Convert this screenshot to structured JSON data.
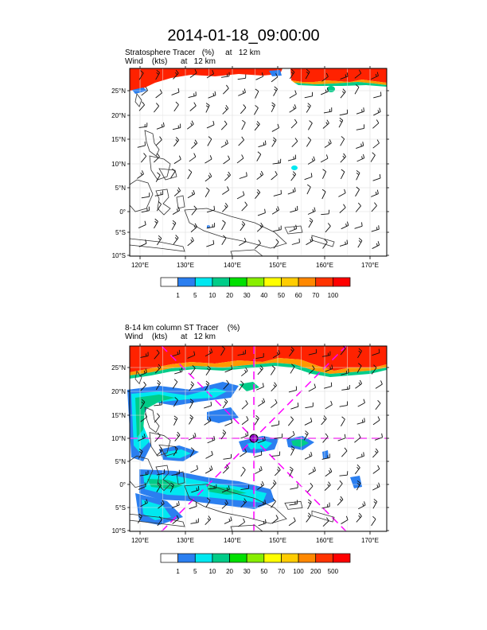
{
  "title": "2014-01-18_09:00:00",
  "panel1": {
    "line1": "Stratosphere Tracer   (%)     at   12 km",
    "line2": "Wind    (kts)      at   12 km",
    "colorbar": {
      "labels": [
        "1",
        "5",
        "10",
        "20",
        "30",
        "40",
        "50",
        "60",
        "70",
        "100"
      ],
      "colors": [
        "#ffffff",
        "#2b7ff0",
        "#00e8f0",
        "#00cc88",
        "#00e000",
        "#88ee00",
        "#ffff00",
        "#ffcc00",
        "#ff8800",
        "#ff3300",
        "#ff0000"
      ]
    }
  },
  "panel2": {
    "line1": "8-14 km column ST Tracer    (%)",
    "line2": "Wind    (kts)      at   12 km",
    "colorbar": {
      "labels": [
        "1",
        "5",
        "10",
        "20",
        "30",
        "50",
        "70",
        "100",
        "200",
        "500"
      ],
      "colors": [
        "#ffffff",
        "#2b7ff0",
        "#00e8f0",
        "#00cc88",
        "#00e000",
        "#88ee00",
        "#ffff00",
        "#ffcc00",
        "#ff8800",
        "#ff3300",
        "#ff0000"
      ]
    }
  },
  "axes": {
    "lat_labels": [
      "25°N",
      "20°N",
      "15°N",
      "10°N",
      "5°N",
      "0°",
      "5°S",
      "10°S"
    ],
    "lon_labels": [
      "120°E",
      "130°E",
      "140°E",
      "150°E",
      "160°E",
      "170°E"
    ]
  },
  "colors": {
    "magenta": "#ff00ff",
    "tracer_red": "#ff2200"
  }
}
